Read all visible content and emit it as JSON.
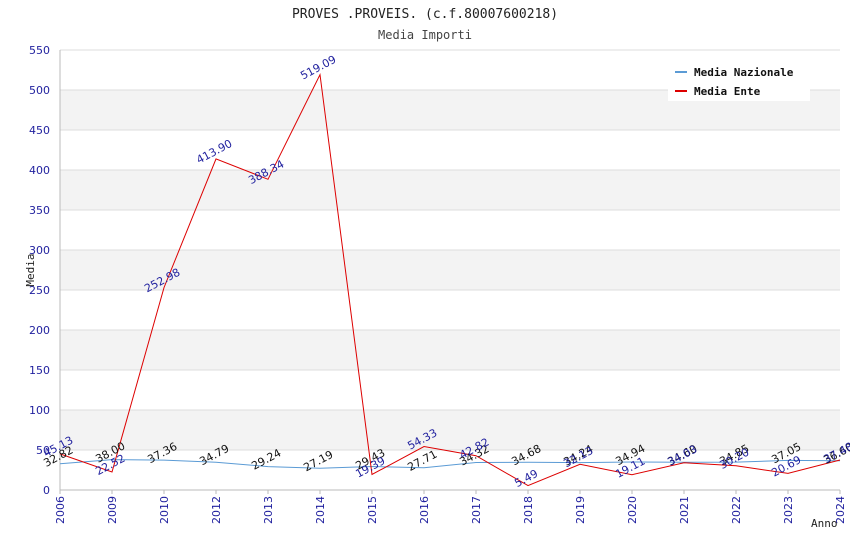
{
  "chart_data": {
    "type": "line",
    "title": "PROVES .PROVEIS. (c.f.80007600218)",
    "subtitle": "Media Importi",
    "xlabel": "Anno",
    "ylabel": "Media",
    "ylim": [
      0,
      550
    ],
    "yticks": [
      0,
      50,
      100,
      150,
      200,
      250,
      300,
      350,
      400,
      450,
      500,
      550
    ],
    "categories": [
      "2006",
      "2009",
      "2010",
      "2012",
      "2013",
      "2014",
      "2015",
      "2016",
      "2017",
      "2018",
      "2019",
      "2020",
      "2021",
      "2022",
      "2023",
      "2024"
    ],
    "grid": true,
    "legend_position": "top-right",
    "series": [
      {
        "name": "Media Nazionale",
        "color": "#5b9bd5",
        "values": [
          32.82,
          38.0,
          37.36,
          34.79,
          29.24,
          27.19,
          29.43,
          27.71,
          34.32,
          34.68,
          34.24,
          34.94,
          34.6,
          34.85,
          37.05,
          36.6
        ],
        "labels": [
          "32.82",
          "38.00",
          "37.36",
          "34.79",
          "29.24",
          "27.19",
          "29.43",
          "27.71",
          "34.32",
          "34.68",
          "34.24",
          "34.94",
          "34.60",
          "34.85",
          "37.05",
          "36.60"
        ]
      },
      {
        "name": "Media Ente",
        "color": "#dd0000",
        "values": [
          45.13,
          22.52,
          252.98,
          413.9,
          388.34,
          519.09,
          19.39,
          54.33,
          42.82,
          5.49,
          32.13,
          19.11,
          34.03,
          30.2,
          20.69,
          37.48
        ],
        "labels": [
          "45.13",
          "22.52",
          "252.98",
          "413.90",
          "388.34",
          "519.09",
          "19.39",
          "54.33",
          "42.82",
          "5.49",
          "32.13",
          "19.11",
          "34.03",
          "30.20",
          "20.69",
          "37.48"
        ]
      }
    ]
  }
}
